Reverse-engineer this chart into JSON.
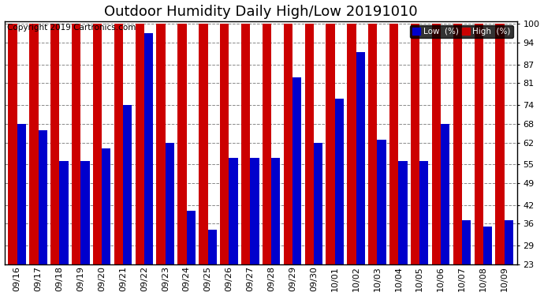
{
  "title": "Outdoor Humidity Daily High/Low 20191010",
  "copyright": "Copyright 2019 Cartronics.com",
  "yticks": [
    23,
    29,
    36,
    42,
    49,
    55,
    62,
    68,
    74,
    81,
    87,
    94,
    100
  ],
  "ylim": [
    23,
    101
  ],
  "background_color": "#ffffff",
  "grid_color": "#888888",
  "dates": [
    "09/16",
    "09/17",
    "09/18",
    "09/19",
    "09/20",
    "09/21",
    "09/22",
    "09/23",
    "09/24",
    "09/25",
    "09/26",
    "09/27",
    "09/28",
    "09/29",
    "09/30",
    "10/01",
    "10/02",
    "10/03",
    "10/04",
    "10/05",
    "10/06",
    "10/07",
    "10/08",
    "10/09"
  ],
  "high": [
    100,
    100,
    100,
    100,
    100,
    100,
    100,
    100,
    100,
    100,
    100,
    100,
    100,
    100,
    100,
    100,
    100,
    100,
    100,
    100,
    100,
    100,
    100,
    100
  ],
  "low": [
    68,
    66,
    56,
    56,
    60,
    74,
    97,
    62,
    40,
    34,
    57,
    57,
    57,
    83,
    62,
    76,
    91,
    63,
    56,
    56,
    68,
    37,
    35,
    37
  ],
  "low_color": "#0000cc",
  "high_color": "#cc0000",
  "legend_low_label": "Low  (%)",
  "legend_high_label": "High  (%)",
  "title_fontsize": 13,
  "tick_fontsize": 8,
  "copyright_fontsize": 7.5,
  "figsize": [
    6.9,
    3.75
  ],
  "dpi": 100
}
